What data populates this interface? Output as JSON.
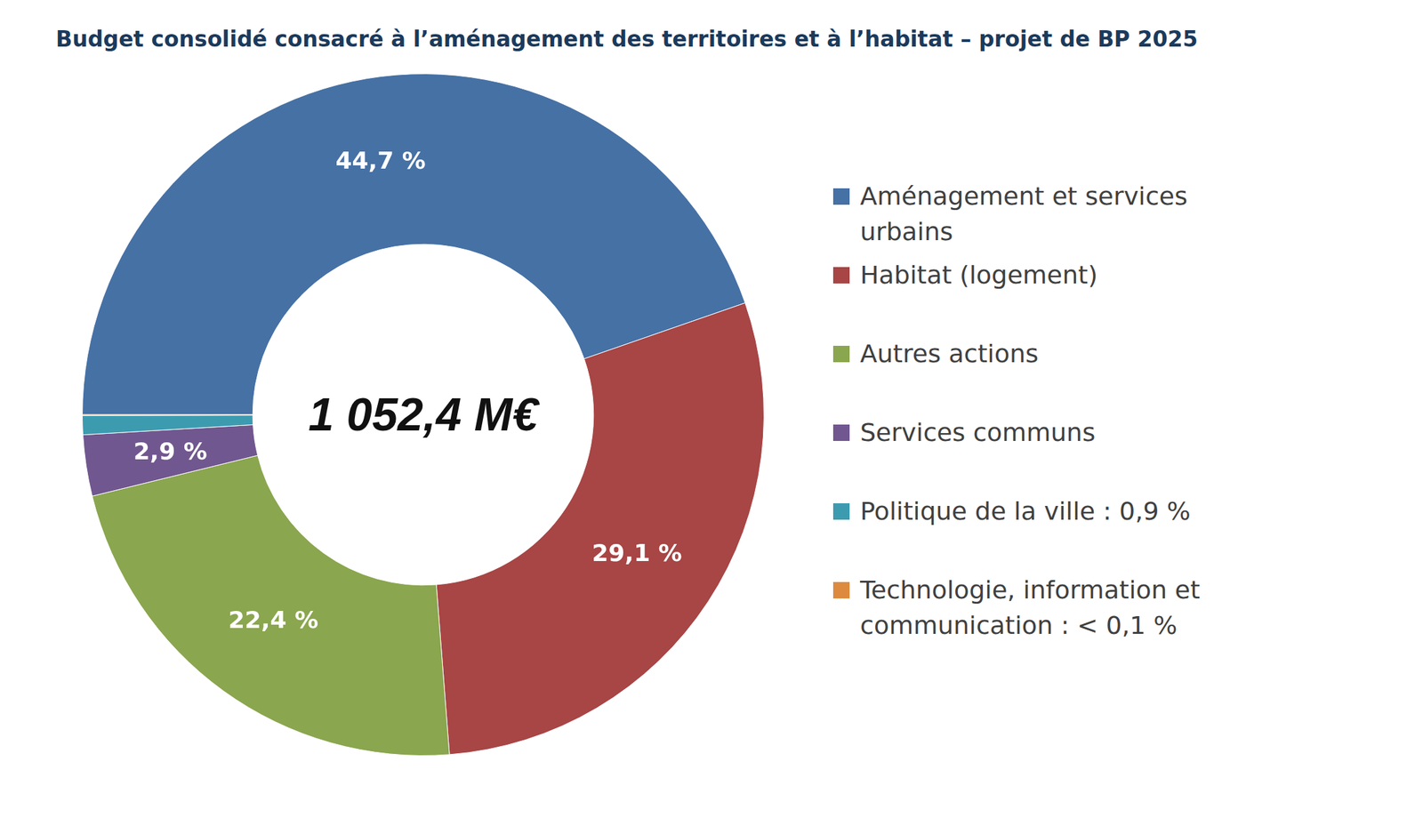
{
  "chart_data": {
    "type": "doughnut",
    "title": "Budget consolidé consacré à l’aménagement des territoires et à l’habitat – projet de BP 2025",
    "center_label": "1 052,4 M€",
    "categories": [
      "Aménagement et services urbains",
      "Habitat (logement)",
      "Autres actions",
      "Services communs",
      "Politique de la ville : 0,9 %",
      "Technologie, information et communication : < 0,1 %"
    ],
    "values": [
      44.7,
      29.1,
      22.4,
      2.9,
      0.9,
      0.04
    ],
    "value_labels": [
      "44,7 %",
      "29,1 %",
      "22,4 %",
      "2,9 %",
      null,
      null
    ],
    "colors": [
      "#4671a5",
      "#a84545",
      "#8aa64e",
      "#71578f",
      "#3d9bb0",
      "#dd8a3f"
    ],
    "data_labels": true,
    "legend": "right"
  }
}
